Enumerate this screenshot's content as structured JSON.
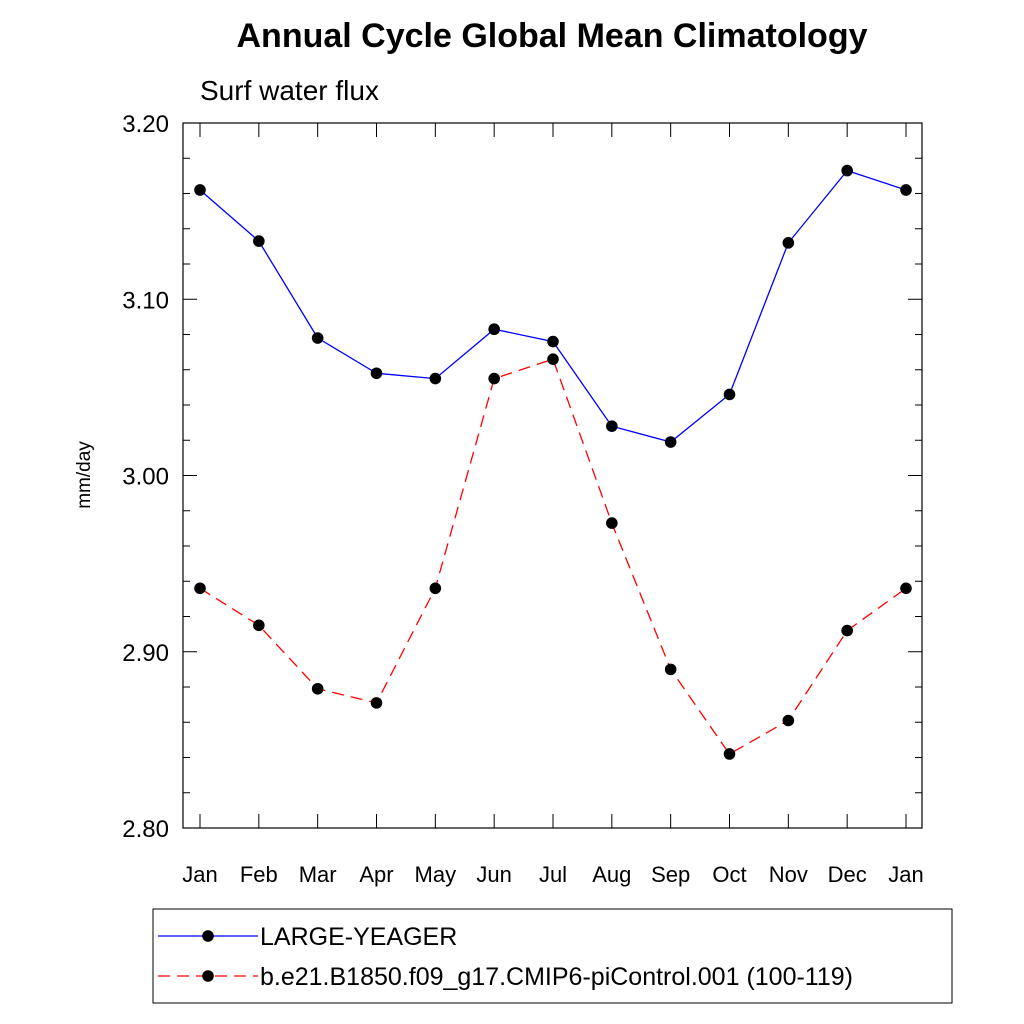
{
  "chart_data": {
    "type": "line",
    "title": "Annual Cycle Global Mean Climatology",
    "subtitle": "Surf water flux",
    "xlabel": "",
    "ylabel": "mm/day",
    "ylim": [
      2.8,
      3.2
    ],
    "yticks": [
      "2.80",
      "2.90",
      "3.00",
      "3.10",
      "3.20"
    ],
    "categories": [
      "Jan",
      "Feb",
      "Mar",
      "Apr",
      "May",
      "Jun",
      "Jul",
      "Aug",
      "Sep",
      "Oct",
      "Nov",
      "Dec",
      "Jan"
    ],
    "grid": false,
    "legend_position": "bottom",
    "series": [
      {
        "name": "LARGE-YEAGER",
        "color": "#0000ff",
        "style": "solid",
        "values": [
          3.162,
          3.133,
          3.078,
          3.058,
          3.055,
          3.083,
          3.076,
          3.028,
          3.019,
          3.046,
          3.132,
          3.173,
          3.162
        ]
      },
      {
        "name": "b.e21.B1850.f09_g17.CMIP6-piControl.001 (100-119)",
        "color": "#ff0000",
        "style": "dashed",
        "values": [
          2.936,
          2.915,
          2.879,
          2.871,
          2.936,
          3.055,
          3.066,
          2.973,
          2.89,
          2.842,
          2.861,
          2.912,
          2.936
        ]
      }
    ]
  }
}
